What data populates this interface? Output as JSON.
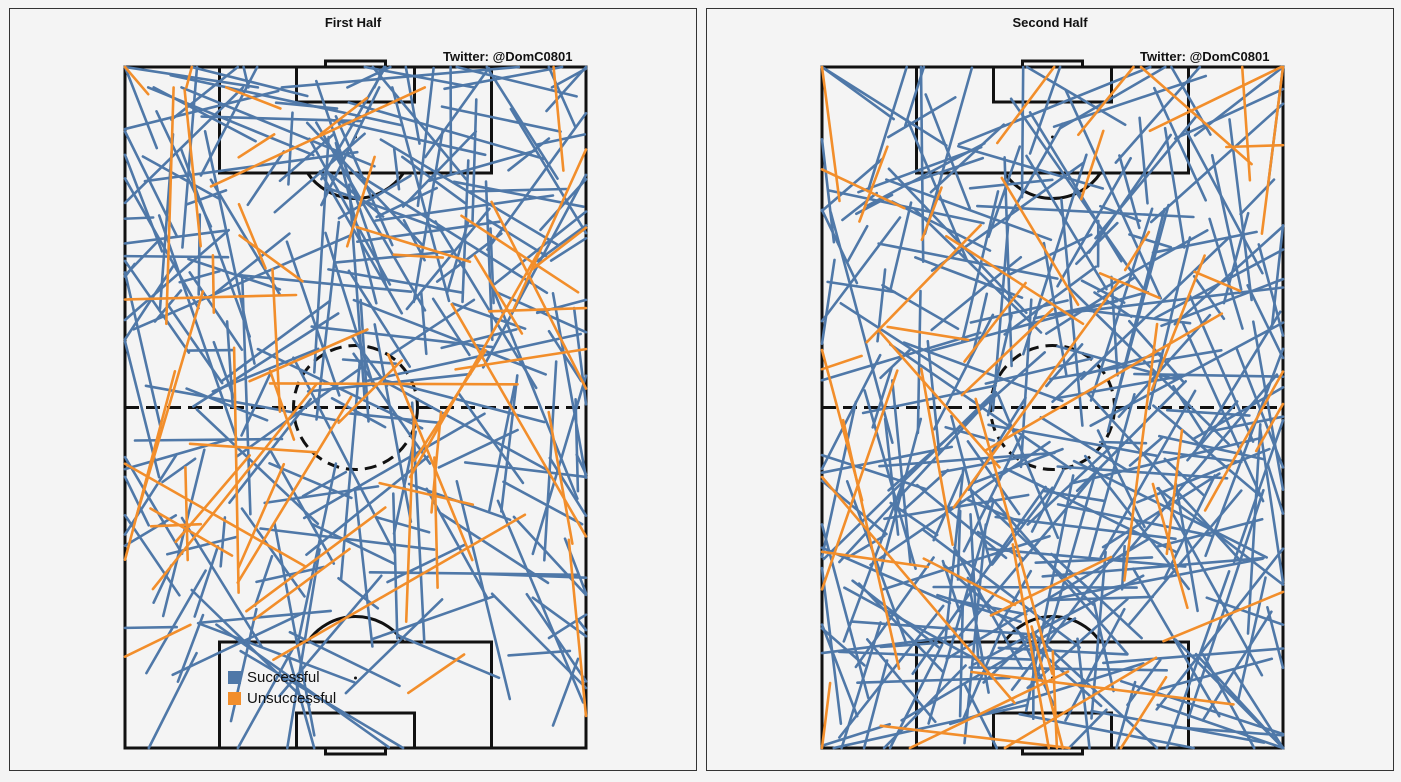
{
  "colors": {
    "successful": "#4f78a8",
    "unsuccessful": "#f28e2b",
    "pitch_line": "#111111"
  },
  "legend": {
    "successful_label": "Successful",
    "unsuccessful_label": "Unsuccessful"
  },
  "chart_data": [
    {
      "type": "scatter",
      "title": "First Half",
      "credit": "Twitter: @DomC0801",
      "axes": "pitch, vertical, goal at top and bottom",
      "legend_position": "bottom-left",
      "series": [
        {
          "name": "Successful",
          "n_passes": 240
        },
        {
          "name": "Unsuccessful",
          "n_passes": 55
        }
      ]
    },
    {
      "type": "scatter",
      "title": "Second Half",
      "credit": "Twitter: @DomC0801",
      "axes": "pitch, vertical, goal at top and bottom",
      "series": [
        {
          "name": "Successful",
          "n_passes": 300
        },
        {
          "name": "Unsuccessful",
          "n_passes": 50
        }
      ]
    }
  ]
}
